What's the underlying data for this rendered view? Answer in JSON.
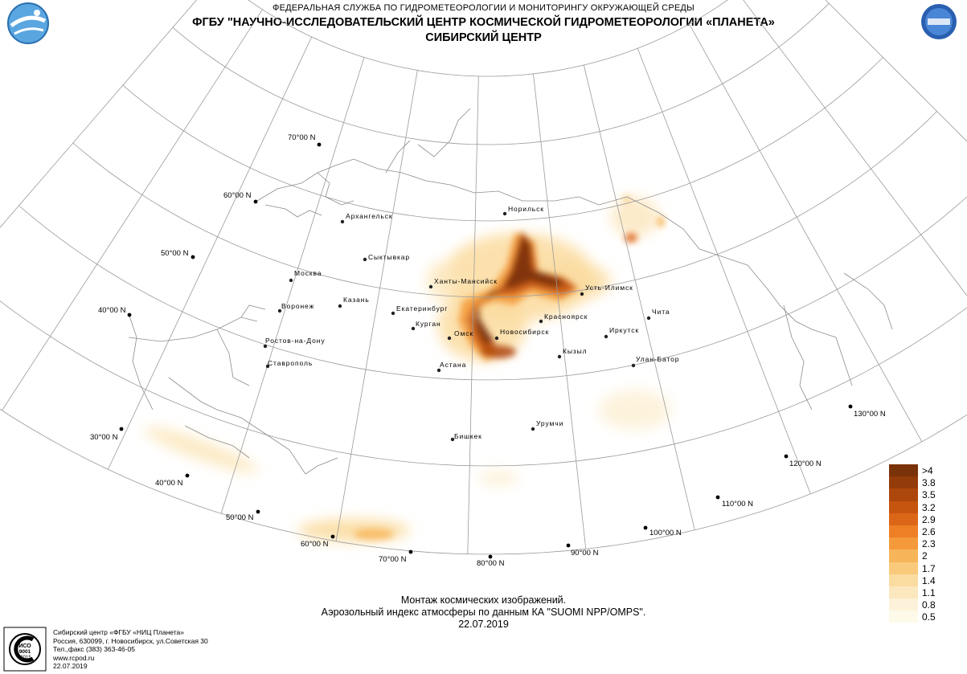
{
  "header": {
    "agency": "ФЕДЕРАЛЬНАЯ СЛУЖБА ПО ГИДРОМЕТЕОРОЛОГИИ И МОНИТОРИНГУ ОКРУЖАЮЩЕЙ СРЕДЫ",
    "title_line1": "ФГБУ \"НАУЧНО-ИССЛЕДОВАТЕЛЬСКИЙ ЦЕНТР КОСМИЧЕСКОЙ ГИДРОМЕТЕОРОЛОГИИ «ПЛАНЕТА»",
    "title_line2": "СИБИРСКИЙ ЦЕНТР",
    "logo_left": "planeta-globe-logo",
    "logo_right": "iss-vct-logo"
  },
  "map": {
    "projection": "conic",
    "latitude_labels": [
      "70°00 N",
      "60°00 N",
      "50°00 N",
      "40°00 N",
      "30°00 N"
    ],
    "longitude_labels": [
      "40°00 N",
      "50°00 N",
      "60°00 N",
      "70°00 N",
      "80°00 N",
      "90°00 N",
      "100°00 N",
      "110°00 N",
      "120°00 N",
      "130°00 N"
    ],
    "cities": [
      {
        "name": "Норильск"
      },
      {
        "name": "Архангельск"
      },
      {
        "name": "Сыктывкар"
      },
      {
        "name": "Москва"
      },
      {
        "name": "Ханты-Мансийск"
      },
      {
        "name": "Усть-Илимск"
      },
      {
        "name": "Воронеж"
      },
      {
        "name": "Казань"
      },
      {
        "name": "Екатеринбург"
      },
      {
        "name": "Красноярск"
      },
      {
        "name": "Чита"
      },
      {
        "name": "Курган"
      },
      {
        "name": "Омск"
      },
      {
        "name": "Новосибирск"
      },
      {
        "name": "Иркутск"
      },
      {
        "name": "Ростов-на-Дону"
      },
      {
        "name": "Кызыл"
      },
      {
        "name": "Улан-Батор"
      },
      {
        "name": "Ставрополь"
      },
      {
        "name": "Астана"
      },
      {
        "name": "Урумчи"
      },
      {
        "name": "Бишкек"
      }
    ],
    "colors": {
      "graticule": "#9a9a9a",
      "coast": "#8c8c8c"
    }
  },
  "legend": {
    "labels": [
      ">4",
      "3.8",
      "3.5",
      "3.2",
      "2.9",
      "2.6",
      "2.3",
      "2",
      "1.7",
      "1.4",
      "1.1",
      "0.8",
      "0.5"
    ],
    "colors": [
      "#7a3208",
      "#943b0a",
      "#ad470c",
      "#c5550f",
      "#dc6617",
      "#ee7f24",
      "#f49a3b",
      "#f7b55a",
      "#f9ca7c",
      "#fbdca0",
      "#fce8bf",
      "#fdf2d9",
      "#fefae9"
    ]
  },
  "caption": {
    "line1": "Монтаж космических изображений.",
    "line2": "Аэрозольный индекс атмосферы по данным КА \"SUOMI NPP/OMPS\".",
    "line3": "22.07.2019"
  },
  "footer": {
    "stamp_icon": "iso-9001-certification-stamp-icon",
    "line1": "Сибирский центр «ФГБУ «НИЦ Планета»",
    "line2": "Россия, 630099, г. Новосибирск, ул.Советская 30",
    "line3": "Тел.,факс (383) 363-46-05",
    "line4": "www.rcpod.ru",
    "line5": "22.07.2019"
  }
}
